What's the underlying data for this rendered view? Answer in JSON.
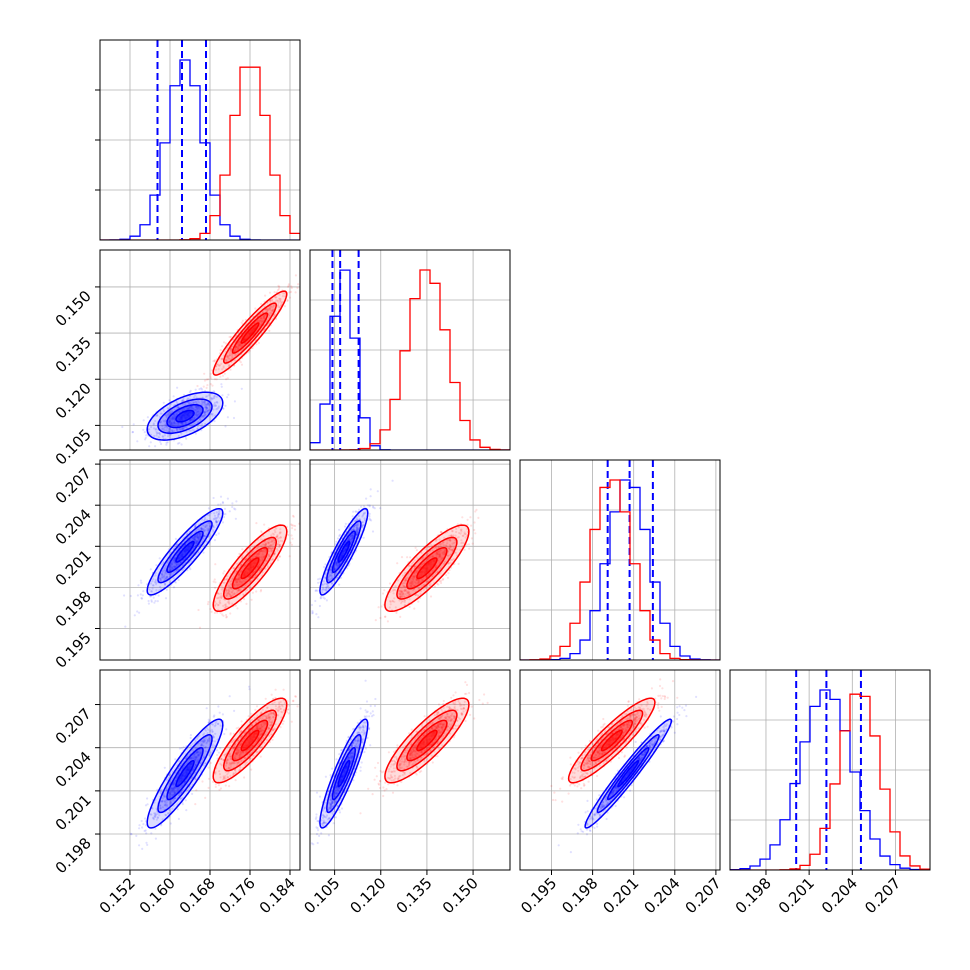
{
  "chart_data": {
    "type": "corner",
    "title": "",
    "parameters": [
      {
        "range": [
          0.146,
          0.186
        ],
        "ticks": [
          "0.152",
          "0.160",
          "0.168",
          "0.176",
          "0.184"
        ]
      },
      {
        "range": [
          0.097,
          0.162
        ],
        "ticks": [
          "0.105",
          "0.120",
          "0.135",
          "0.150"
        ]
      },
      {
        "range": [
          0.1927,
          0.2073
        ],
        "ticks": [
          "0.195",
          "0.198",
          "0.201",
          "0.204",
          "0.207"
        ]
      },
      {
        "range": [
          0.1955,
          0.2094
        ],
        "ticks": [
          "0.198",
          "0.201",
          "0.204",
          "0.207"
        ]
      }
    ],
    "grid": true,
    "series": [
      {
        "color": "#0000ff",
        "means": [
          0.163,
          0.108,
          0.2006,
          0.2022
        ],
        "sigmas": [
          0.0036,
          0.0037,
          0.0015,
          0.0018
        ],
        "quantiles": [
          [
            0.1575,
            0.1624,
            0.1672
          ],
          [
            0.1043,
            0.1068,
            0.1128
          ],
          [
            0.1991,
            0.2007,
            0.2024
          ],
          [
            0.2001,
            0.2022,
            0.2046
          ]
        ],
        "correlations": [
          [
            0,
            1,
            0.55
          ],
          [
            0,
            2,
            0.9
          ],
          [
            0,
            3,
            0.9
          ],
          [
            1,
            2,
            0.9
          ],
          [
            1,
            3,
            0.9
          ],
          [
            2,
            3,
            0.97
          ]
        ]
      },
      {
        "color": "#ff0000",
        "means": [
          0.176,
          0.135,
          0.1994,
          0.2045
        ],
        "sigmas": [
          0.0035,
          0.0065,
          0.0015,
          0.0014
        ],
        "quantiles": [],
        "correlations": [
          [
            0,
            1,
            0.93
          ],
          [
            0,
            2,
            0.85
          ],
          [
            0,
            3,
            0.85
          ],
          [
            1,
            2,
            0.85
          ],
          [
            1,
            3,
            0.85
          ],
          [
            2,
            3,
            0.9
          ]
        ]
      }
    ]
  }
}
